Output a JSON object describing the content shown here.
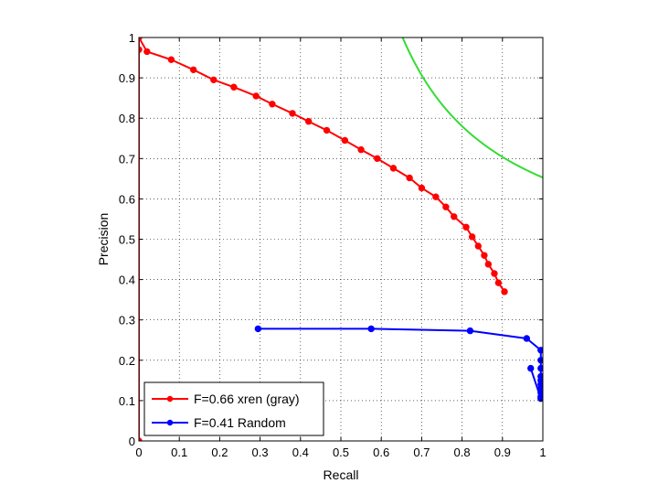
{
  "chart_data": {
    "type": "line",
    "title": "",
    "xlabel": "Recall",
    "ylabel": "Precision",
    "xlim": [
      0,
      1
    ],
    "ylim": [
      0,
      1
    ],
    "xticks": [
      0,
      0.1,
      0.2,
      0.3,
      0.4,
      0.5,
      0.6,
      0.7,
      0.8,
      0.9,
      1
    ],
    "yticks": [
      0,
      0.1,
      0.2,
      0.3,
      0.4,
      0.5,
      0.6,
      0.7,
      0.8,
      0.9,
      1
    ],
    "xtick_labels": [
      "0",
      "0.1",
      "0.2",
      "0.3",
      "0.4",
      "0.5",
      "0.6",
      "0.7",
      "0.8",
      "0.9",
      "1"
    ],
    "ytick_labels": [
      "0",
      "0.1",
      "0.2",
      "0.3",
      "0.4",
      "0.5",
      "0.6",
      "0.7",
      "0.8",
      "0.9",
      "1"
    ],
    "grid": true,
    "legend_position": "bottom-left",
    "series": [
      {
        "name": "F=0.66 xren (gray)",
        "color": "#ff0000",
        "marker": true,
        "points": [
          [
            0,
            0
          ],
          [
            0,
            0.97
          ],
          [
            0,
            1.0
          ],
          [
            0.02,
            0.965
          ],
          [
            0.08,
            0.945
          ],
          [
            0.135,
            0.92
          ],
          [
            0.185,
            0.895
          ],
          [
            0.235,
            0.877
          ],
          [
            0.29,
            0.855
          ],
          [
            0.33,
            0.835
          ],
          [
            0.38,
            0.812
          ],
          [
            0.42,
            0.792
          ],
          [
            0.465,
            0.77
          ],
          [
            0.51,
            0.745
          ],
          [
            0.55,
            0.722
          ],
          [
            0.59,
            0.7
          ],
          [
            0.63,
            0.676
          ],
          [
            0.67,
            0.652
          ],
          [
            0.7,
            0.627
          ],
          [
            0.735,
            0.605
          ],
          [
            0.76,
            0.58
          ],
          [
            0.78,
            0.556
          ],
          [
            0.81,
            0.53
          ],
          [
            0.825,
            0.506
          ],
          [
            0.84,
            0.483
          ],
          [
            0.855,
            0.46
          ],
          [
            0.865,
            0.438
          ],
          [
            0.88,
            0.415
          ],
          [
            0.89,
            0.392
          ],
          [
            0.905,
            0.37
          ]
        ]
      },
      {
        "name": "F=0.41 Random",
        "color": "#0000ff",
        "marker": true,
        "points": [
          [
            0.295,
            0.278
          ],
          [
            0.575,
            0.278
          ],
          [
            0.82,
            0.273
          ],
          [
            0.96,
            0.254
          ],
          [
            0.995,
            0.225
          ],
          [
            0.995,
            0.2
          ],
          [
            0.995,
            0.18
          ],
          [
            0.995,
            0.16
          ],
          [
            0.995,
            0.15
          ],
          [
            0.995,
            0.14
          ],
          [
            0.995,
            0.13
          ],
          [
            0.995,
            0.12
          ],
          [
            0.995,
            0.11
          ],
          [
            0.995,
            0.105
          ],
          [
            0.97,
            0.18
          ]
        ]
      },
      {
        "name": "",
        "color": "#33dd33",
        "marker": false,
        "f_measure": 0.79,
        "points": []
      }
    ]
  }
}
